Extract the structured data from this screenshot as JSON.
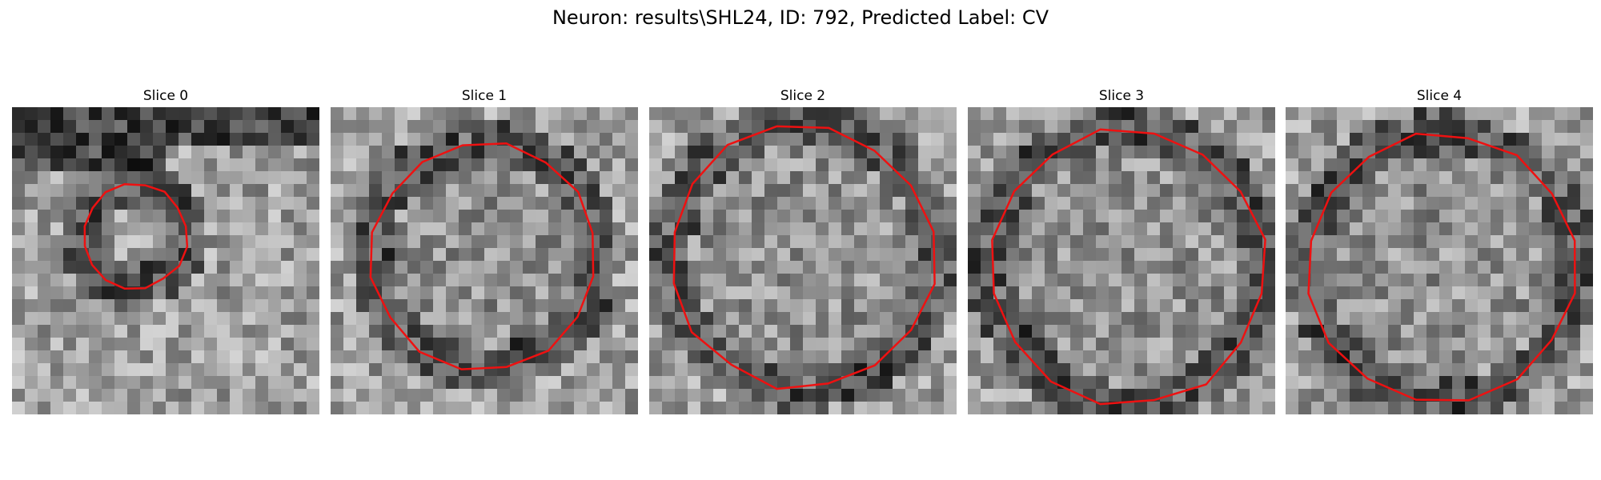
{
  "figure": {
    "title": "Neuron: results\\SHL24, ID: 792, Predicted Label: CV"
  },
  "panels": [
    {
      "title": "Slice 0",
      "seed": 11,
      "darkTop": true,
      "contour_radius_frac": 0.17,
      "contour_cx": 0.4,
      "contour_cy": 0.42
    },
    {
      "title": "Slice 1",
      "seed": 27,
      "darkTop": false,
      "contour_radius_frac": 0.37,
      "contour_cx": 0.5,
      "contour_cy": 0.48
    },
    {
      "title": "Slice 2",
      "seed": 43,
      "darkTop": false,
      "contour_radius_frac": 0.43,
      "contour_cx": 0.5,
      "contour_cy": 0.49
    },
    {
      "title": "Slice 3",
      "seed": 59,
      "darkTop": false,
      "contour_radius_frac": 0.45,
      "contour_cx": 0.52,
      "contour_cy": 0.52
    },
    {
      "title": "Slice 4",
      "seed": 71,
      "darkTop": false,
      "contour_radius_frac": 0.44,
      "contour_cx": 0.51,
      "contour_cy": 0.52
    }
  ],
  "colors": {
    "contour": "#ee1111"
  }
}
